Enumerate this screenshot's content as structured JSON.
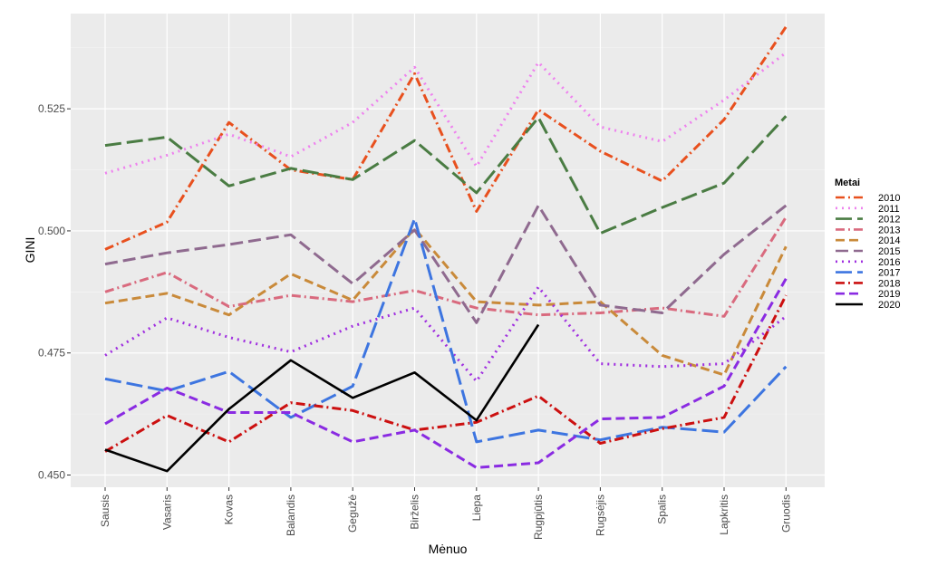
{
  "chart_data": {
    "type": "line",
    "xlabel": "Mėnuo",
    "ylabel": "GINI",
    "ylim": [
      0.4475,
      0.5445
    ],
    "yticks": [
      0.45,
      0.475,
      0.5,
      0.525
    ],
    "ytick_labels": [
      "0.450",
      "0.475",
      "0.500",
      "0.525"
    ],
    "grid": true,
    "legend_title": "Metai",
    "legend_position": "right",
    "categories": [
      "Sausis",
      "Vasaris",
      "Kovas",
      "Balandis",
      "Gegužė",
      "Birželis",
      "Liepa",
      "Rugpjūtis",
      "Rugsėjis",
      "Spalis",
      "Lapkritis",
      "Gruodis"
    ],
    "series": [
      {
        "name": "2010",
        "color": "#E8501E",
        "dash": "10,4,2,4",
        "width": 3,
        "values": [
          0.4962,
          0.5018,
          0.5222,
          0.5125,
          0.5105,
          0.5322,
          0.504,
          0.5248,
          0.5163,
          0.5102,
          0.5228,
          0.5418
        ]
      },
      {
        "name": "2011",
        "color": "#EE82EE",
        "dash": "2,5",
        "width": 3,
        "values": [
          0.5118,
          0.5155,
          0.5198,
          0.5152,
          0.5222,
          0.5335,
          0.5132,
          0.5345,
          0.5213,
          0.5183,
          0.5268,
          0.5365
        ]
      },
      {
        "name": "2012",
        "color": "#4A7C43",
        "dash": "18,6",
        "width": 3,
        "values": [
          0.5175,
          0.5192,
          0.5092,
          0.5128,
          0.5105,
          0.5185,
          0.5078,
          0.5232,
          0.4995,
          0.5048,
          0.5098,
          0.5235
        ]
      },
      {
        "name": "2013",
        "color": "#D96A7E",
        "dash": "10,4,2,4",
        "width": 3,
        "values": [
          0.4875,
          0.4915,
          0.4845,
          0.4868,
          0.4855,
          0.4878,
          0.4842,
          0.4828,
          0.4832,
          0.4842,
          0.4825,
          0.5028
        ]
      },
      {
        "name": "2014",
        "color": "#C98A3A",
        "dash": "10,5",
        "width": 3,
        "values": [
          0.4852,
          0.4872,
          0.4828,
          0.4912,
          0.4858,
          0.5005,
          0.4855,
          0.4848,
          0.4855,
          0.4745,
          0.4705,
          0.4968
        ]
      },
      {
        "name": "2015",
        "color": "#8F6A8F",
        "dash": "14,6",
        "width": 3,
        "values": [
          0.4932,
          0.4955,
          0.4972,
          0.4992,
          0.4892,
          0.5002,
          0.4812,
          0.5052,
          0.4848,
          0.4832,
          0.4952,
          0.5052
        ]
      },
      {
        "name": "2016",
        "color": "#A030E0",
        "dash": "2,5",
        "width": 3,
        "values": [
          0.4745,
          0.4822,
          0.4782,
          0.4752,
          0.4805,
          0.4842,
          0.4692,
          0.4885,
          0.4728,
          0.4722,
          0.4728,
          0.4825
        ]
      },
      {
        "name": "2017",
        "color": "#3D75E0",
        "dash": "18,6",
        "width": 3,
        "values": [
          0.4697,
          0.4672,
          0.4712,
          0.4618,
          0.4682,
          0.5025,
          0.4568,
          0.4592,
          0.4572,
          0.4598,
          0.4588,
          0.4722
        ]
      },
      {
        "name": "2018",
        "color": "#CC1010",
        "dash": "10,4,2,4",
        "width": 3,
        "values": [
          0.4548,
          0.4622,
          0.4568,
          0.4648,
          0.4632,
          0.4592,
          0.4608,
          0.4662,
          0.4565,
          0.4595,
          0.4618,
          0.4868
        ]
      },
      {
        "name": "2019",
        "color": "#8A2BE2",
        "dash": "10,5",
        "width": 3,
        "values": [
          0.4605,
          0.4678,
          0.4628,
          0.4628,
          0.4568,
          0.4592,
          0.4515,
          0.4525,
          0.4615,
          0.4618,
          0.4682,
          0.4902
        ]
      },
      {
        "name": "2020",
        "color": "#000000",
        "dash": "",
        "width": 2.6,
        "values": [
          0.4552,
          0.4508,
          0.4635,
          0.4735,
          0.4658,
          0.471,
          0.4612,
          0.4808,
          null,
          null,
          null,
          null
        ]
      }
    ]
  }
}
